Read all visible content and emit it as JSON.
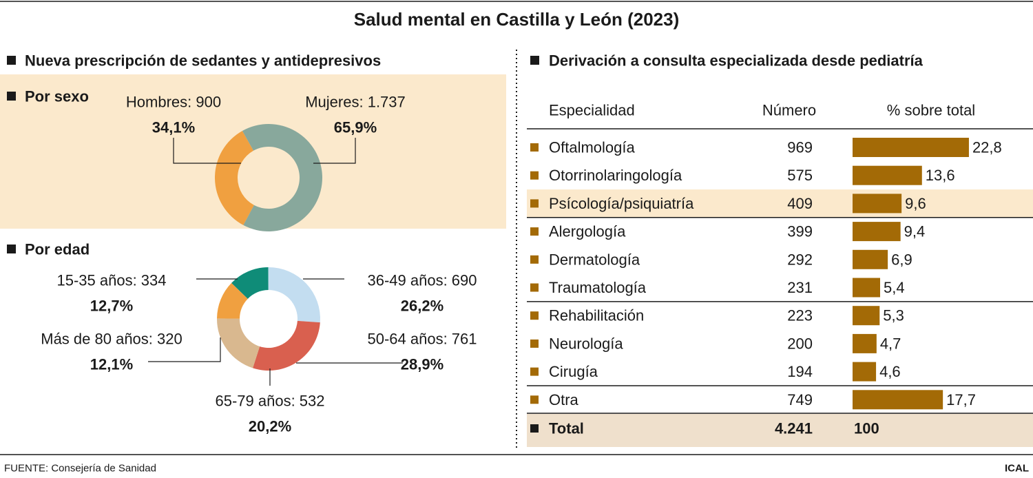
{
  "title": "Salud mental en Castilla y León (2023)",
  "left_heading": "Nueva prescripción de sedantes y antidepresivos",
  "source": "FUENTE: Consejería de Sanidad",
  "credit": "ICAL",
  "chart_data": [
    {
      "type": "donut",
      "title": "Por sexo",
      "categories": [
        "Hombres: 900",
        "Mujeres: 1.737"
      ],
      "values": [
        34.1,
        65.9
      ],
      "value_labels": [
        "34,1%",
        "65,9%"
      ],
      "colors": [
        "#f0a040",
        "#88a89c"
      ]
    },
    {
      "type": "donut",
      "title": "Por edad",
      "categories": [
        "15-35 años: 334",
        "36-49 años: 690",
        "50-64 años: 761",
        "65-79 años: 532",
        "Más de 80 años: 320"
      ],
      "values": [
        12.7,
        26.2,
        28.9,
        20.2,
        12.1
      ],
      "value_labels": [
        "12,7%",
        "26,2%",
        "28,9%",
        "20,2%",
        "12,1%"
      ],
      "colors": [
        "#0f8c78",
        "#c3ddf0",
        "#d9604f",
        "#d9b88f",
        "#f0a040"
      ]
    },
    {
      "type": "bar",
      "title": "Derivación a consulta especializada desde pediatría",
      "columns": [
        "Especialidad",
        "Número",
        "% sobre total"
      ],
      "categories": [
        "Oftalmología",
        "Otorrinolaringología",
        "Psícología/psiquiatría",
        "Alergología",
        "Dermatología",
        "Traumatología",
        "Rehabilitación",
        "Neurología",
        "Cirugía",
        "Otra"
      ],
      "numbers": [
        969,
        575,
        409,
        399,
        292,
        231,
        223,
        200,
        194,
        749
      ],
      "values": [
        22.8,
        13.6,
        9.6,
        9.4,
        6.9,
        5.4,
        5.3,
        4.7,
        4.6,
        17.7
      ],
      "value_labels": [
        "22,8",
        "13,6",
        "9,6",
        "9,4",
        "6,9",
        "5,4",
        "5,3",
        "4,7",
        "4,6",
        "17,7"
      ],
      "highlight": "Psícología/psiquiatría",
      "color": "#a36a06",
      "total": {
        "label": "Total",
        "number": "4.241",
        "percent": 100
      }
    }
  ]
}
